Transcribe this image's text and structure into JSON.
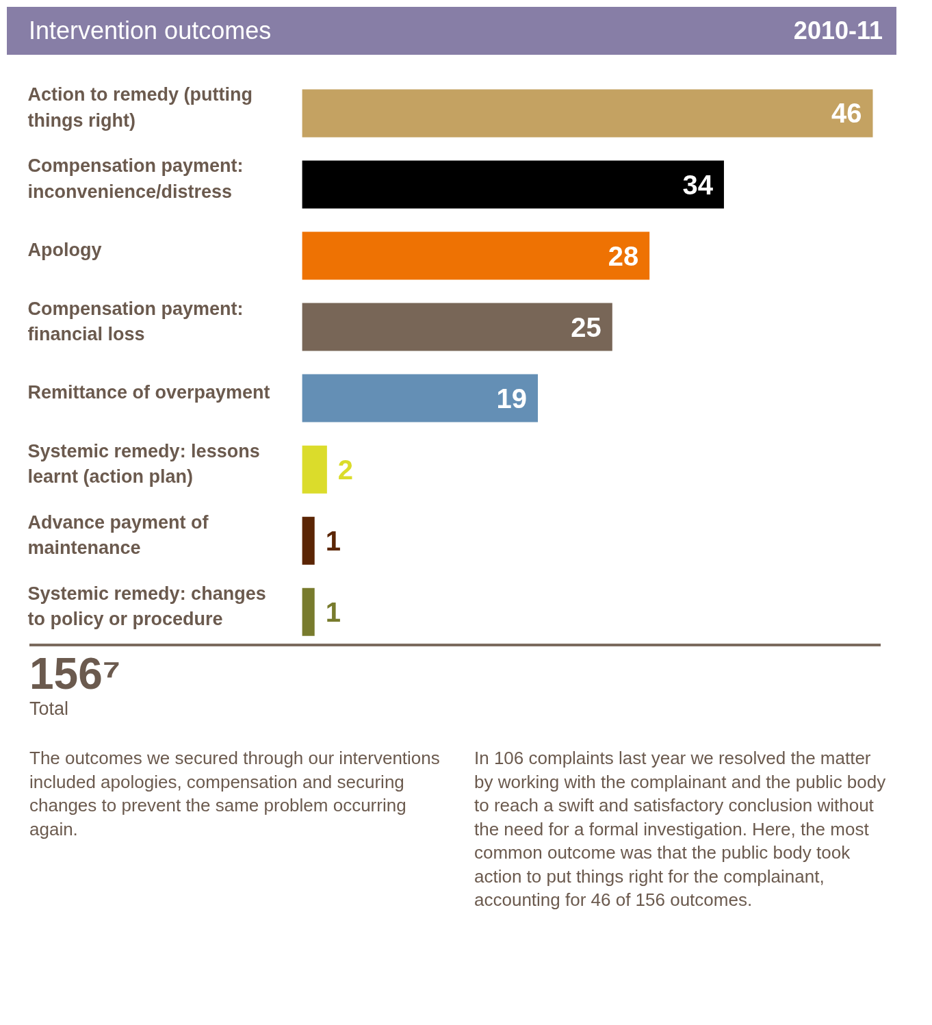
{
  "chart_data": {
    "type": "bar",
    "orientation": "horizontal",
    "title": "Intervention outcomes",
    "subtitle": "2010-11",
    "categories": [
      "Action to remedy (putting things right)",
      "Compensation payment: inconvenience/distress",
      "Apology",
      "Compensation payment: financial loss",
      "Remittance of overpayment",
      "Systemic remedy: lessons learnt (action plan)",
      "Advance payment of maintenance",
      "Systemic remedy: changes to policy or procedure"
    ],
    "values": [
      46,
      34,
      28,
      25,
      19,
      2,
      1,
      1
    ],
    "colors": [
      "#c4a262",
      "#000000",
      "#ee7203",
      "#786657",
      "#648fb5",
      "#dbdc2b",
      "#5b2504",
      "#787b2d"
    ],
    "data_labels": true,
    "grid": false,
    "annotations": [
      "156⁷",
      "Total",
      "The outcomes we secured through our interventions included apologies, compensation and securing changes to prevent the same problem occurring again.",
      "In 106 complaints last year we resolved the matter by working with the complainant and the public body to reach a swift and satisfactory conclusion without the need for a formal investigation. Here, the most common outcome was that the public body took action to put things right for the complainant, accounting for 46 of 156 outcomes."
    ]
  }
}
